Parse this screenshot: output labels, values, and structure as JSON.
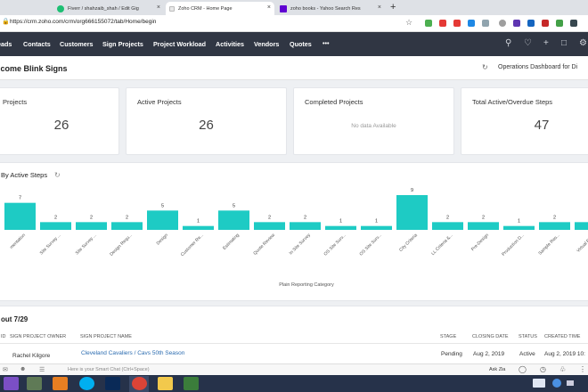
{
  "browser": {
    "tabs": [
      {
        "label": "Fiverr / shahzaib_shah / Edit Gig",
        "active": false
      },
      {
        "label": "Zoho CRM - Home Page",
        "active": true
      },
      {
        "label": "zoho books - Yahoo Search Res",
        "active": false
      }
    ],
    "new_tab_icon": "plus-icon",
    "url": "https://crm.zoho.com/crm/org666155072/tab/Home/begin"
  },
  "nav": {
    "items": [
      "eads",
      "Contacts",
      "Customers",
      "Sign Projects",
      "Project Workload",
      "Activities",
      "Vendors",
      "Quotes"
    ],
    "more": "•••"
  },
  "welcome": {
    "greeting": "lcome Blink Signs",
    "dashboard": "Operations Dashboard for Di"
  },
  "cards": [
    {
      "title": "Projects",
      "value": "26",
      "no_data": ""
    },
    {
      "title": "Active Projects",
      "value": "26",
      "no_data": ""
    },
    {
      "title": "Completed Projects",
      "value": "",
      "no_data": "No data Available"
    },
    {
      "title": "Total Active/Overdue Steps",
      "value": "47",
      "no_data": ""
    }
  ],
  "chart_panel": {
    "title": "By Active Steps"
  },
  "chart_data": {
    "type": "bar",
    "title": "By Active Steps",
    "xlabel": "Plain Reporting Category",
    "ylabel": "",
    "color": "#1ecbc4",
    "categories": [
      "mentation",
      "Site Survey ...",
      "Site Survey ...",
      "Design Requ...",
      "Design",
      "Customer Re...",
      "Estimating",
      "Quote Review",
      "In Site Survey",
      "OS Site Surv...",
      "OS Site Surv...",
      "City Criteria",
      "LL Criteria &...",
      "Pre-Design",
      "Production D...",
      "Sample Res...",
      "Virtual Pro..."
    ],
    "values": [
      7,
      2,
      2,
      2,
      5,
      1,
      5,
      2,
      2,
      1,
      1,
      9,
      2,
      2,
      1,
      2,
      2
    ]
  },
  "list": {
    "title": "out 7/29",
    "columns": [
      "ID",
      "SIGN PROJECT OWNER",
      "SIGN PROJECT NAME",
      "STAGE",
      "CLOSING DATE",
      "STATUS",
      "CREATED TIME"
    ],
    "row": {
      "owner": "Rachel Kilgore",
      "name": "Cleveland Cavaliers / Cavs 50th Season",
      "stage": "Pending",
      "closing": "Aug 2, 2019",
      "status": "Active",
      "created": "Aug 2, 2019 10:"
    }
  },
  "bottom": {
    "chat_placeholder": "Here is your Smart Chat (Ctrl+Space)",
    "ask_zia": "Ask Zia"
  },
  "colors": {
    "nav_bg": "#303643",
    "bar": "#1ecbc4",
    "link": "#2b6cb0"
  }
}
